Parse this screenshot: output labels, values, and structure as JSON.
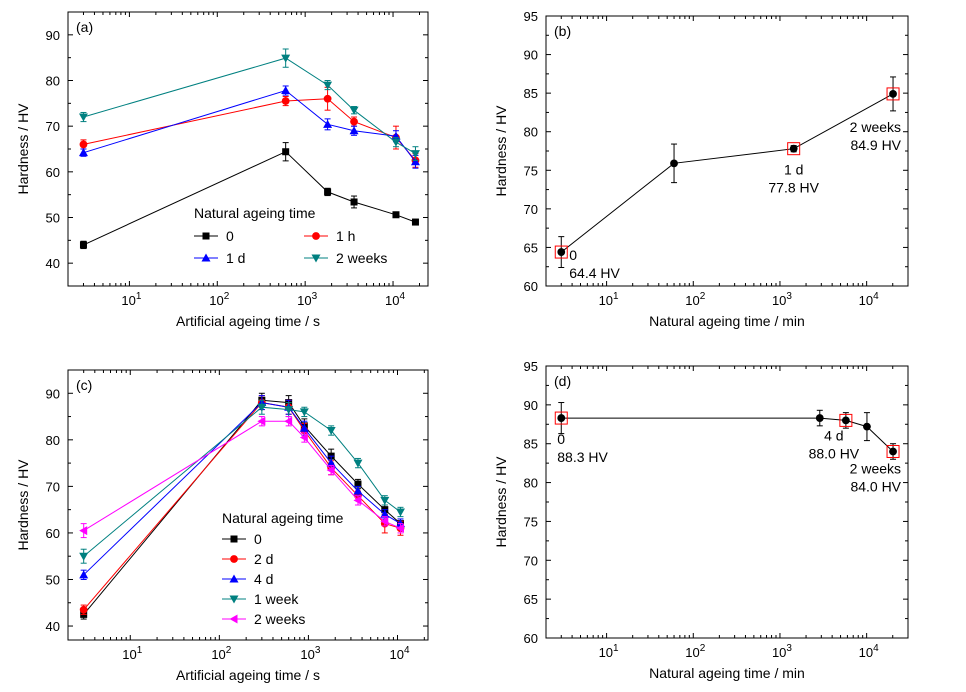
{
  "chart_data": [
    {
      "id": "a",
      "type": "line",
      "panel_label": "(a)",
      "xlabel": "Artificial ageing time / s",
      "ylabel": "Hardness / HV",
      "xscale": "log",
      "xlim": [
        2,
        25000
      ],
      "ylim": [
        35,
        95
      ],
      "xticks": [
        10,
        100,
        1000,
        10000
      ],
      "xtick_labels": [
        [
          "10",
          "1"
        ],
        [
          "10",
          "2"
        ],
        [
          "10",
          "3"
        ],
        [
          "10",
          "4"
        ]
      ],
      "yticks": [
        40,
        50,
        60,
        70,
        80,
        90
      ],
      "ytick_labels": [
        "40",
        "50",
        "60",
        "70",
        "80",
        "90"
      ],
      "legend": {
        "title": "Natural ageing time",
        "placement": "bottom-center",
        "columns": 2
      },
      "series": [
        {
          "name": "0",
          "color": "#000000",
          "marker": "square",
          "x": [
            3,
            600,
            1800,
            3600,
            10800,
            18000
          ],
          "y": [
            44.0,
            64.4,
            55.6,
            53.4,
            50.6,
            49.0
          ],
          "err": [
            0.8,
            2.0,
            0.8,
            1.3,
            0.6,
            0.6
          ]
        },
        {
          "name": "1 h",
          "color": "#ff0000",
          "marker": "circle",
          "x": [
            3,
            600,
            1800,
            3600,
            10800,
            18000
          ],
          "y": [
            66.0,
            75.5,
            76.0,
            71.0,
            67.5,
            62.5
          ],
          "err": [
            1.0,
            1.0,
            2.5,
            1.0,
            2.5,
            1.5
          ]
        },
        {
          "name": "1 d",
          "color": "#0000ff",
          "marker": "triangle-up",
          "x": [
            3,
            600,
            1800,
            3600,
            10800,
            18000
          ],
          "y": [
            64.2,
            77.8,
            70.4,
            69.0,
            67.8,
            62.2
          ],
          "err": [
            0.8,
            1.0,
            1.2,
            1.0,
            1.2,
            1.4
          ]
        },
        {
          "name": "2 weeks",
          "color": "#008080",
          "marker": "triangle-down",
          "x": [
            3,
            600,
            1800,
            3600,
            10800,
            18000
          ],
          "y": [
            72.0,
            84.9,
            79.0,
            73.5,
            66.5,
            64.0
          ],
          "err": [
            1.0,
            2.0,
            1.0,
            0.8,
            1.0,
            1.5
          ]
        }
      ]
    },
    {
      "id": "b",
      "type": "line",
      "panel_label": "(b)",
      "xlabel": "Natural ageing time / min",
      "ylabel": "Hardness / HV",
      "xscale": "log",
      "xlim": [
        2,
        30000
      ],
      "ylim": [
        60,
        95
      ],
      "xticks": [
        10,
        100,
        1000,
        10000
      ],
      "xtick_labels": [
        [
          "10",
          "1"
        ],
        [
          "10",
          "2"
        ],
        [
          "10",
          "3"
        ],
        [
          "10",
          "4"
        ]
      ],
      "yticks": [
        60,
        65,
        70,
        75,
        80,
        85,
        90,
        95
      ],
      "ytick_labels": [
        "60",
        "65",
        "70",
        "75",
        "80",
        "85",
        "90",
        "95"
      ],
      "series": [
        {
          "name": "",
          "color": "#000000",
          "marker": "circle",
          "x": [
            3,
            60,
            1440,
            20160
          ],
          "y": [
            64.4,
            75.9,
            77.8,
            84.9
          ],
          "err": [
            2.0,
            2.5,
            0.4,
            2.2
          ],
          "boxed": [
            true,
            false,
            true,
            true
          ]
        }
      ],
      "annotations": [
        {
          "lines": [
            "0",
            "64.4 HV"
          ],
          "x": 3,
          "y": 64.4,
          "dx": 8,
          "dy": 8,
          "anchor": "start"
        },
        {
          "lines": [
            "1 d",
            "77.8 HV"
          ],
          "x": 1440,
          "y": 77.8,
          "dx": 0,
          "dy": 26,
          "anchor": "middle"
        },
        {
          "lines": [
            "2 weeks",
            "84.9 HV"
          ],
          "x": 20160,
          "y": 84.9,
          "dx": 8,
          "dy": 38,
          "anchor": "end"
        }
      ]
    },
    {
      "id": "c",
      "type": "line",
      "panel_label": "(c)",
      "xlabel": "Artificial ageing time / s",
      "ylabel": "Hardness / HV",
      "xscale": "log",
      "xlim": [
        2,
        22000
      ],
      "ylim": [
        37,
        95
      ],
      "xticks": [
        10,
        100,
        1000,
        10000
      ],
      "xtick_labels": [
        [
          "10",
          "1"
        ],
        [
          "10",
          "2"
        ],
        [
          "10",
          "3"
        ],
        [
          "10",
          "4"
        ]
      ],
      "yticks": [
        40,
        50,
        60,
        70,
        80,
        90
      ],
      "ytick_labels": [
        "40",
        "50",
        "60",
        "70",
        "80",
        "90"
      ],
      "legend": {
        "title": "Natural ageing time",
        "placement": "bottom-center",
        "columns": 1
      },
      "series": [
        {
          "name": "0",
          "color": "#000000",
          "marker": "square",
          "x": [
            3,
            300,
            600,
            900,
            1800,
            3600,
            7200,
            10800
          ],
          "y": [
            42.5,
            88.5,
            88.0,
            83.0,
            76.5,
            70.5,
            65.0,
            62.0
          ],
          "err": [
            1.0,
            1.5,
            1.5,
            1.5,
            1.5,
            1.0,
            1.0,
            1.0
          ]
        },
        {
          "name": "2 d",
          "color": "#ff0000",
          "marker": "circle",
          "x": [
            3,
            300,
            600,
            900,
            1800,
            3600,
            7200,
            10800
          ],
          "y": [
            43.5,
            88.0,
            87.0,
            82.0,
            74.0,
            68.0,
            62.0,
            61.0
          ],
          "err": [
            1.0,
            1.5,
            1.5,
            1.5,
            1.5,
            1.0,
            2.0,
            1.5
          ]
        },
        {
          "name": "4 d",
          "color": "#0000ff",
          "marker": "triangle-up",
          "x": [
            3,
            300,
            600,
            900,
            1800,
            3600,
            7200,
            10800
          ],
          "y": [
            51.0,
            88.0,
            87.0,
            82.5,
            75.0,
            69.0,
            64.0,
            62.0
          ],
          "err": [
            1.0,
            1.5,
            1.5,
            1.5,
            1.5,
            1.0,
            1.0,
            1.0
          ]
        },
        {
          "name": "1 week",
          "color": "#008080",
          "marker": "triangle-down",
          "x": [
            3,
            300,
            600,
            900,
            1800,
            3600,
            7200,
            10800
          ],
          "y": [
            55.0,
            87.0,
            86.5,
            86.0,
            82.0,
            75.0,
            67.0,
            64.5
          ],
          "err": [
            1.5,
            1.5,
            1.5,
            1.0,
            1.0,
            1.0,
            1.0,
            1.0
          ]
        },
        {
          "name": "2 weeks",
          "color": "#ff00ff",
          "marker": "triangle-left",
          "x": [
            3,
            300,
            600,
            900,
            1800,
            3600,
            7200,
            10800
          ],
          "y": [
            60.5,
            84.0,
            84.0,
            80.5,
            73.5,
            67.0,
            62.5,
            61.0
          ],
          "err": [
            1.5,
            1.0,
            1.0,
            1.0,
            1.0,
            1.0,
            1.0,
            1.0
          ]
        }
      ]
    },
    {
      "id": "d",
      "type": "line",
      "panel_label": "(d)",
      "xlabel": "Natural ageing time / min",
      "ylabel": "Hardness / HV",
      "xscale": "log",
      "xlim": [
        2,
        30000
      ],
      "ylim": [
        60,
        95
      ],
      "xticks": [
        10,
        100,
        1000,
        10000
      ],
      "xtick_labels": [
        [
          "10",
          "1"
        ],
        [
          "10",
          "2"
        ],
        [
          "10",
          "3"
        ],
        [
          "10",
          "4"
        ]
      ],
      "yticks": [
        60,
        65,
        70,
        75,
        80,
        85,
        90,
        95
      ],
      "ytick_labels": [
        "60",
        "65",
        "70",
        "75",
        "80",
        "85",
        "90",
        "95"
      ],
      "series": [
        {
          "name": "",
          "color": "#000000",
          "marker": "circle",
          "x": [
            3,
            2880,
            5760,
            10080,
            20160
          ],
          "y": [
            88.3,
            88.3,
            88.0,
            87.2,
            84.0
          ],
          "err": [
            2.0,
            1.0,
            1.0,
            1.8,
            1.0
          ],
          "boxed": [
            true,
            false,
            true,
            false,
            true
          ]
        }
      ],
      "annotations": [
        {
          "lines": [
            "0",
            "88.3 HV"
          ],
          "x": 3,
          "y": 88.3,
          "dx": -4,
          "dy": 26,
          "anchor": "start"
        },
        {
          "lines": [
            "4 d",
            "88.0 HV"
          ],
          "x": 5760,
          "y": 88.0,
          "dx": -12,
          "dy": 20,
          "anchor": "middle"
        },
        {
          "lines": [
            "2 weeks",
            "84.0 HV"
          ],
          "x": 20160,
          "y": 84.0,
          "dx": 8,
          "dy": 22,
          "anchor": "end"
        }
      ]
    }
  ]
}
